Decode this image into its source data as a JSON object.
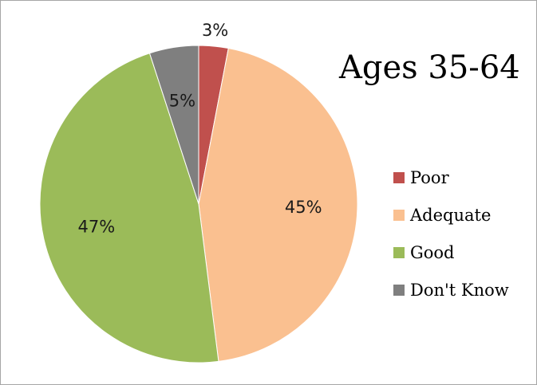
{
  "chart_data": {
    "type": "pie",
    "title": "Ages 35-64",
    "categories": [
      "Poor",
      "Adequate",
      "Good",
      "Don't Know"
    ],
    "values": [
      3,
      45,
      47,
      5
    ],
    "data_labels": [
      "3%",
      "45%",
      "47%",
      "5%"
    ],
    "colors": [
      "#c0504d",
      "#fac090",
      "#9bbb59",
      "#7f7f7f"
    ],
    "legend_position": "right"
  }
}
